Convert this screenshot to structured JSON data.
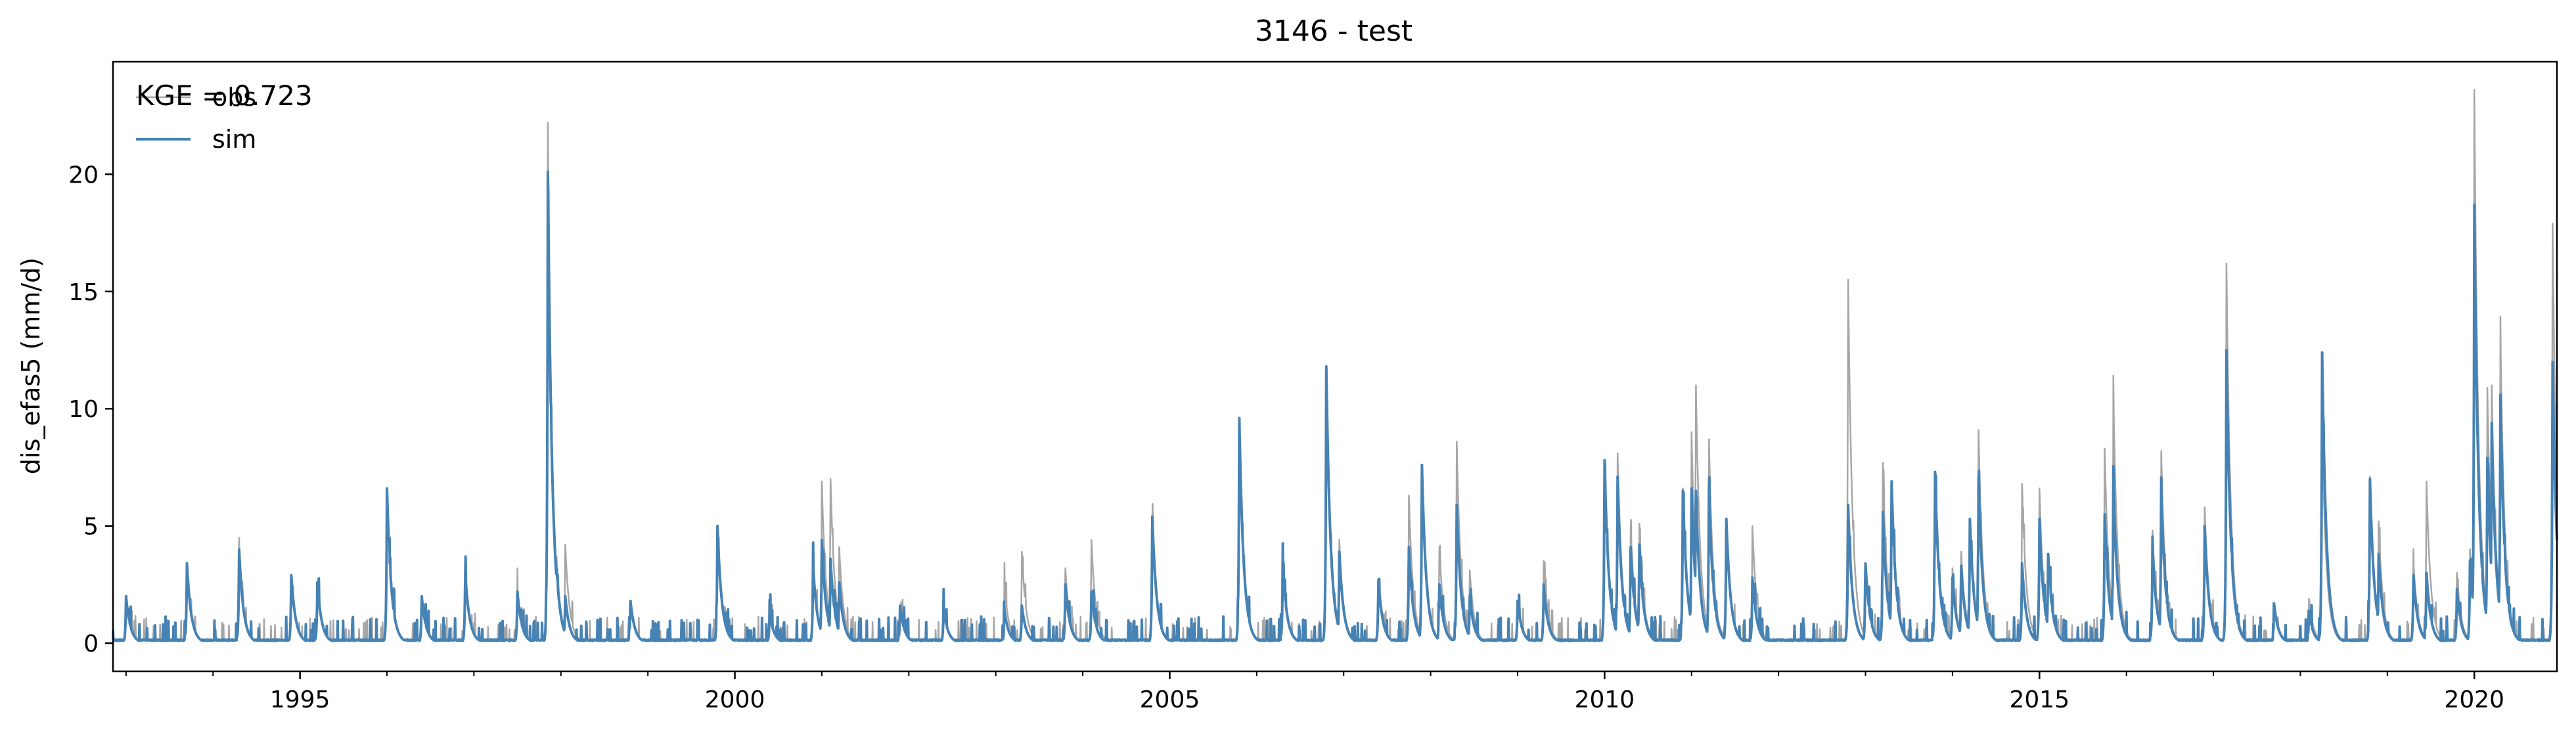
{
  "chart_data": {
    "type": "line",
    "title": "3146 - test",
    "xlabel": "",
    "ylabel": "dis_efas5 (mm/d)",
    "xlim": [
      1992.85,
      2020.95
    ],
    "ylim": [
      -1.2,
      24.8
    ],
    "x_ticks": [
      1995,
      2000,
      2005,
      2010,
      2015,
      2020
    ],
    "x_tick_labels": [
      "1995",
      "2000",
      "2005",
      "2010",
      "2015",
      "2020"
    ],
    "y_ticks": [
      0,
      5,
      10,
      15,
      20
    ],
    "y_tick_labels": [
      "0",
      "5",
      "10",
      "15",
      "20"
    ],
    "grid": false,
    "legend_position": "top-left",
    "annotation": "KGE = 0.723",
    "series": [
      {
        "name": "obs",
        "color": "#808080",
        "alpha": 0.7,
        "peaks": [
          [
            1993.0,
            2.0
          ],
          [
            1993.7,
            3.4
          ],
          [
            1994.3,
            4.0
          ],
          [
            1994.9,
            2.9
          ],
          [
            1995.2,
            2.6
          ],
          [
            1996.0,
            6.6
          ],
          [
            1996.4,
            2.0
          ],
          [
            1996.9,
            3.0
          ],
          [
            1997.5,
            2.2
          ],
          [
            1997.85,
            22.2
          ],
          [
            1997.95,
            3.7
          ],
          [
            1998.05,
            4.2
          ],
          [
            1998.8,
            1.8
          ],
          [
            1999.8,
            5.0
          ],
          [
            2000.4,
            1.3
          ],
          [
            2000.9,
            3.3
          ],
          [
            2001.0,
            6.9
          ],
          [
            2001.1,
            7.0
          ],
          [
            2001.2,
            4.1
          ],
          [
            2001.9,
            1.6
          ],
          [
            2002.4,
            1.5
          ],
          [
            2003.1,
            2.5
          ],
          [
            2003.3,
            3.9
          ],
          [
            2003.8,
            3.2
          ],
          [
            2004.1,
            4.4
          ],
          [
            2004.8,
            5.4
          ],
          [
            2005.8,
            9.6
          ],
          [
            2006.3,
            3.3
          ],
          [
            2006.8,
            11.8
          ],
          [
            2006.95,
            4.4
          ],
          [
            2007.4,
            2.7
          ],
          [
            2007.75,
            6.3
          ],
          [
            2007.9,
            7.6
          ],
          [
            2008.1,
            4.1
          ],
          [
            2008.3,
            8.6
          ],
          [
            2008.45,
            3.1
          ],
          [
            2009.0,
            1.8
          ],
          [
            2009.3,
            3.5
          ],
          [
            2010.0,
            7.8
          ],
          [
            2010.15,
            8.1
          ],
          [
            2010.3,
            5.0
          ],
          [
            2010.4,
            5.1
          ],
          [
            2010.9,
            6.6
          ],
          [
            2011.0,
            9.0
          ],
          [
            2011.05,
            11.0
          ],
          [
            2011.2,
            8.7
          ],
          [
            2011.4,
            5.3
          ],
          [
            2011.7,
            5.0
          ],
          [
            2012.8,
            15.5
          ],
          [
            2013.0,
            3.4
          ],
          [
            2013.2,
            7.7
          ],
          [
            2013.3,
            6.9
          ],
          [
            2013.8,
            7.3
          ],
          [
            2014.0,
            3.2
          ],
          [
            2014.1,
            3.9
          ],
          [
            2014.2,
            5.3
          ],
          [
            2014.3,
            9.1
          ],
          [
            2014.8,
            6.8
          ],
          [
            2015.0,
            6.6
          ],
          [
            2015.1,
            3.8
          ],
          [
            2015.75,
            8.3
          ],
          [
            2015.85,
            10.7
          ],
          [
            2016.3,
            4.8
          ],
          [
            2016.4,
            8.2
          ],
          [
            2016.9,
            5.8
          ],
          [
            2017.15,
            16.2
          ],
          [
            2017.7,
            1.6
          ],
          [
            2018.1,
            1.9
          ],
          [
            2018.25,
            9.3
          ],
          [
            2018.8,
            7.1
          ],
          [
            2018.9,
            5.2
          ],
          [
            2019.3,
            3.5
          ],
          [
            2019.45,
            6.9
          ],
          [
            2019.8,
            3.0
          ],
          [
            2019.95,
            4.0
          ],
          [
            2020.0,
            23.6
          ],
          [
            2020.15,
            10.9
          ],
          [
            2020.2,
            11.0
          ],
          [
            2020.3,
            13.3
          ],
          [
            2020.9,
            17.9
          ]
        ]
      },
      {
        "name": "sim",
        "color": "#4682b4",
        "alpha": 1.0,
        "peaks": [
          [
            1993.0,
            2.0
          ],
          [
            1993.7,
            3.4
          ],
          [
            1994.3,
            4.0
          ],
          [
            1994.9,
            2.9
          ],
          [
            1995.2,
            2.6
          ],
          [
            1996.0,
            6.6
          ],
          [
            1996.4,
            2.0
          ],
          [
            1996.9,
            3.0
          ],
          [
            1997.5,
            2.2
          ],
          [
            1997.85,
            20.1
          ],
          [
            1997.95,
            3.2
          ],
          [
            1998.05,
            2.0
          ],
          [
            1998.8,
            1.8
          ],
          [
            1999.8,
            5.0
          ],
          [
            2000.4,
            1.3
          ],
          [
            2000.9,
            3.3
          ],
          [
            2001.0,
            4.4
          ],
          [
            2001.1,
            3.6
          ],
          [
            2001.2,
            2.6
          ],
          [
            2001.9,
            1.6
          ],
          [
            2002.4,
            1.5
          ],
          [
            2003.1,
            1.4
          ],
          [
            2003.3,
            1.6
          ],
          [
            2003.8,
            2.5
          ],
          [
            2004.1,
            2.2
          ],
          [
            2004.8,
            5.4
          ],
          [
            2005.8,
            9.6
          ],
          [
            2006.3,
            3.3
          ],
          [
            2006.8,
            11.8
          ],
          [
            2006.95,
            3.9
          ],
          [
            2007.4,
            2.7
          ],
          [
            2007.75,
            4.1
          ],
          [
            2007.9,
            7.6
          ],
          [
            2008.1,
            2.5
          ],
          [
            2008.3,
            5.9
          ],
          [
            2008.45,
            2.0
          ],
          [
            2009.0,
            1.8
          ],
          [
            2009.3,
            2.5
          ],
          [
            2010.0,
            7.8
          ],
          [
            2010.15,
            7.1
          ],
          [
            2010.3,
            4.1
          ],
          [
            2010.4,
            4.2
          ],
          [
            2010.9,
            6.5
          ],
          [
            2011.0,
            6.6
          ],
          [
            2011.05,
            6.5
          ],
          [
            2011.2,
            6.6
          ],
          [
            2011.4,
            5.3
          ],
          [
            2011.7,
            2.8
          ],
          [
            2012.8,
            5.9
          ],
          [
            2013.0,
            3.4
          ],
          [
            2013.2,
            5.6
          ],
          [
            2013.3,
            6.9
          ],
          [
            2013.8,
            7.3
          ],
          [
            2014.0,
            2.8
          ],
          [
            2014.1,
            3.3
          ],
          [
            2014.2,
            5.3
          ],
          [
            2014.3,
            7.0
          ],
          [
            2014.8,
            3.4
          ],
          [
            2015.0,
            5.3
          ],
          [
            2015.1,
            3.8
          ],
          [
            2015.75,
            5.5
          ],
          [
            2015.85,
            6.9
          ],
          [
            2016.3,
            4.1
          ],
          [
            2016.4,
            6.5
          ],
          [
            2016.9,
            5.0
          ],
          [
            2017.15,
            12.5
          ],
          [
            2017.7,
            1.6
          ],
          [
            2018.1,
            1.3
          ],
          [
            2018.25,
            12.4
          ],
          [
            2018.8,
            7.0
          ],
          [
            2018.9,
            3.8
          ],
          [
            2019.3,
            2.9
          ],
          [
            2019.45,
            3.0
          ],
          [
            2019.8,
            2.3
          ],
          [
            2019.95,
            3.5
          ],
          [
            2020.0,
            18.7
          ],
          [
            2020.15,
            7.9
          ],
          [
            2020.2,
            9.4
          ],
          [
            2020.3,
            10.6
          ],
          [
            2020.9,
            12.0
          ]
        ]
      }
    ]
  }
}
